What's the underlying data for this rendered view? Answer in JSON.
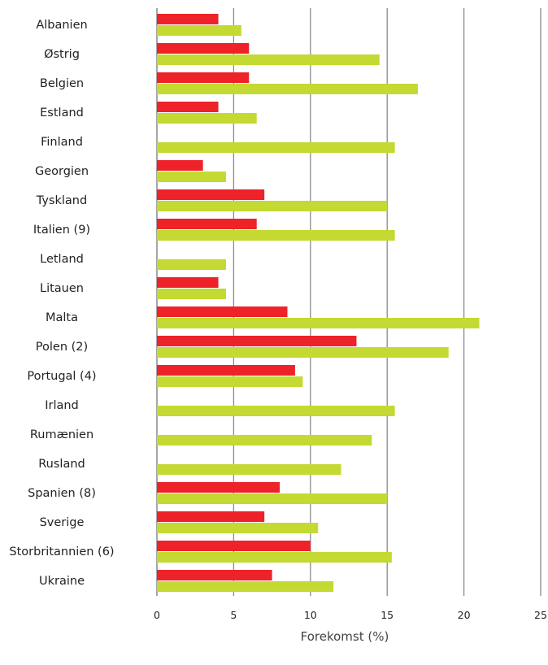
{
  "chart_data": {
    "type": "bar",
    "orientation": "horizontal",
    "title": "",
    "xlabel": "Forekomst (%)",
    "ylabel": "",
    "xlim": [
      0,
      25
    ],
    "xticks": [
      "0",
      "5",
      "10",
      "15",
      "20",
      "25"
    ],
    "grid": "vertical",
    "legend": "none",
    "categories": [
      "Albanien",
      "Østrig",
      "Belgien",
      "Estland",
      "Finland",
      "Georgien",
      "Tyskland",
      "Italien (9)",
      "Letland",
      "Litauen",
      "Malta",
      "Polen (2)",
      "Portugal (4)",
      "Irland",
      "Rumænien",
      "Rusland",
      "Spanien (8)",
      "Sverige",
      "Storbritannien (6)",
      "Ukraine"
    ],
    "series": [
      {
        "color": "#ee2229",
        "values": [
          4,
          6,
          6,
          4,
          null,
          3,
          7,
          6.5,
          null,
          4,
          8.5,
          13,
          9,
          null,
          null,
          null,
          8,
          7,
          10,
          7.5
        ]
      },
      {
        "color": "#c4d932",
        "values": [
          5.5,
          14.5,
          17,
          6.5,
          15.5,
          4.5,
          15,
          15.5,
          4.5,
          4.5,
          21,
          19,
          9.5,
          15.5,
          14,
          12,
          15,
          10.5,
          15.3,
          11.5
        ]
      }
    ]
  }
}
